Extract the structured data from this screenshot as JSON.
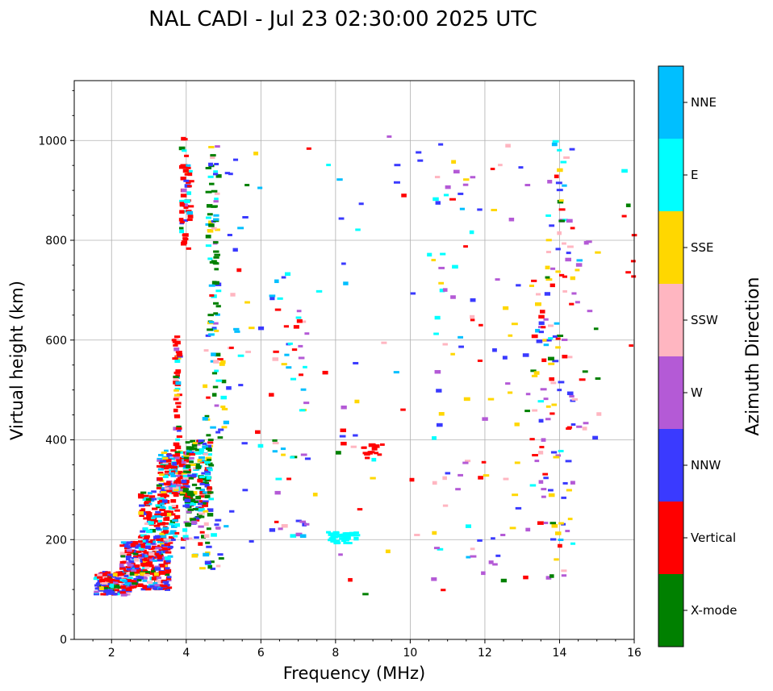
{
  "chart_data": {
    "type": "scatter",
    "title": "NAL CADI - Jul 23 02:30:00 2025 UTC",
    "xlabel": "Frequency (MHz)",
    "ylabel": "Virtual height (km)",
    "xlim": [
      1,
      16
    ],
    "ylim": [
      0,
      1120
    ],
    "xticks": [
      2,
      4,
      6,
      8,
      10,
      12,
      14,
      16
    ],
    "yticks": [
      0,
      200,
      400,
      600,
      800,
      1000
    ],
    "grid": true,
    "colorbar": {
      "label": "Azimuth Direction",
      "categories": [
        "X-mode",
        "Vertical",
        "NNW",
        "W",
        "SSW",
        "SSE",
        "E",
        "NNE"
      ],
      "colors": [
        "#008000",
        "#ff0000",
        "#3a3aff",
        "#b45ad6",
        "#ffb6c1",
        "#ffd700",
        "#00ffff",
        "#00bfff"
      ]
    },
    "bands": [
      {
        "f": [
          1.5,
          2.4
        ],
        "h": [
          90,
          135
        ],
        "n": 150,
        "mix": [
          0.08,
          0.35,
          0.25,
          0.1,
          0.08,
          0.04,
          0.05,
          0.05
        ]
      },
      {
        "f": [
          2.2,
          3.5
        ],
        "h": [
          100,
          195
        ],
        "n": 280,
        "mix": [
          0.06,
          0.34,
          0.26,
          0.14,
          0.06,
          0.04,
          0.05,
          0.05
        ]
      },
      {
        "f": [
          2.7,
          3.7
        ],
        "h": [
          195,
          300
        ],
        "n": 150,
        "mix": [
          0.03,
          0.5,
          0.15,
          0.05,
          0.05,
          0.02,
          0.1,
          0.1
        ]
      },
      {
        "f": [
          3.2,
          4.0
        ],
        "h": [
          290,
          380
        ],
        "n": 160,
        "mix": [
          0.05,
          0.45,
          0.15,
          0.05,
          0.05,
          0.05,
          0.1,
          0.1
        ]
      },
      {
        "f": [
          3.9,
          4.6
        ],
        "h": [
          240,
          400
        ],
        "n": 170,
        "mix": [
          0.4,
          0.15,
          0.1,
          0.05,
          0.03,
          0.05,
          0.12,
          0.1
        ]
      },
      {
        "f": [
          3.6,
          3.75
        ],
        "h": [
          380,
          610
        ],
        "n": 45,
        "mix": [
          0.05,
          0.6,
          0.05,
          0.05,
          0.05,
          0.05,
          0.1,
          0.05
        ]
      },
      {
        "f": [
          3.8,
          4.05
        ],
        "h": [
          780,
          1005
        ],
        "n": 55,
        "mix": [
          0.02,
          0.75,
          0.03,
          0.02,
          0.03,
          0.02,
          0.08,
          0.05
        ]
      },
      {
        "f": [
          4.5,
          4.8
        ],
        "h": [
          600,
          990
        ],
        "n": 70,
        "mix": [
          0.35,
          0.05,
          0.1,
          0.05,
          0.05,
          0.1,
          0.2,
          0.1
        ]
      },
      {
        "f": [
          4.4,
          5.0
        ],
        "h": [
          400,
          600
        ],
        "n": 30,
        "mix": [
          0.2,
          0.1,
          0.05,
          0.05,
          0.05,
          0.3,
          0.15,
          0.1
        ]
      },
      {
        "f": [
          3.8,
          4.9
        ],
        "h": [
          140,
          240
        ],
        "n": 40,
        "mix": [
          0.2,
          0.1,
          0.25,
          0.2,
          0.05,
          0.05,
          0.1,
          0.05
        ]
      },
      {
        "f": [
          6.2,
          7.2
        ],
        "h": [
          200,
          740
        ],
        "n": 55,
        "mix": [
          0.03,
          0.1,
          0.2,
          0.15,
          0.05,
          0.1,
          0.2,
          0.17
        ]
      },
      {
        "f": [
          5.0,
          6.0
        ],
        "h": [
          150,
          1010
        ],
        "n": 30,
        "mix": [
          0.02,
          0.2,
          0.2,
          0.1,
          0.08,
          0.1,
          0.15,
          0.15
        ]
      },
      {
        "f": [
          7.7,
          8.5
        ],
        "h": [
          193,
          215
        ],
        "n": 40,
        "mix": [
          0,
          0,
          0,
          0,
          0,
          0,
          1,
          0
        ]
      },
      {
        "f": [
          8.6,
          9.2
        ],
        "h": [
          362,
          392
        ],
        "n": 14,
        "mix": [
          0,
          1,
          0,
          0,
          0,
          0,
          0,
          0
        ]
      },
      {
        "f": [
          7.0,
          11.0
        ],
        "h": [
          90,
          1010
        ],
        "n": 45,
        "mix": [
          0.02,
          0.15,
          0.2,
          0.15,
          0.05,
          0.18,
          0.15,
          0.1
        ]
      },
      {
        "f": [
          10.5,
          12.0
        ],
        "h": [
          90,
          1005
        ],
        "n": 60,
        "mix": [
          0.02,
          0.15,
          0.25,
          0.2,
          0.08,
          0.15,
          0.1,
          0.05
        ]
      },
      {
        "f": [
          12.0,
          13.2
        ],
        "h": [
          90,
          1010
        ],
        "n": 35,
        "mix": [
          0.02,
          0.08,
          0.2,
          0.2,
          0.15,
          0.25,
          0.05,
          0.05
        ]
      },
      {
        "f": [
          13.2,
          13.6
        ],
        "h": [
          230,
          720
        ],
        "n": 40,
        "mix": [
          0.02,
          0.45,
          0.15,
          0.15,
          0.05,
          0.1,
          0.05,
          0.03
        ]
      },
      {
        "f": [
          13.6,
          14.3
        ],
        "h": [
          100,
          1000
        ],
        "n": 95,
        "mix": [
          0.03,
          0.18,
          0.2,
          0.15,
          0.1,
          0.2,
          0.08,
          0.06
        ]
      },
      {
        "f": [
          14.3,
          15.0
        ],
        "h": [
          300,
          820
        ],
        "n": 20,
        "mix": [
          0.08,
          0.3,
          0.1,
          0.15,
          0.15,
          0.15,
          0.05,
          0.02
        ]
      },
      {
        "f": [
          15.6,
          16.0
        ],
        "h": [
          530,
          950
        ],
        "n": 8,
        "mix": [
          0.15,
          0.45,
          0.05,
          0.1,
          0.05,
          0.15,
          0.05,
          0
        ]
      }
    ]
  }
}
